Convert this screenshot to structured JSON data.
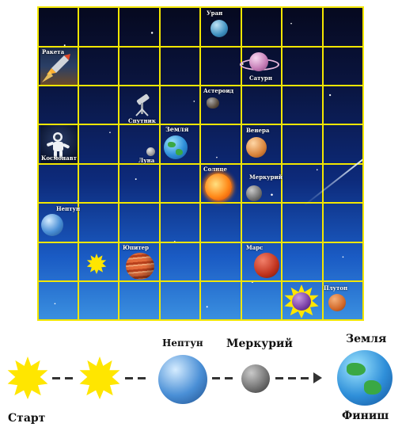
{
  "board": {
    "rows": 8,
    "cols": 8,
    "grid_color": "#f2e600",
    "labels": {
      "uranus": "Уран",
      "rocket": "Ракета",
      "saturn": "Сатурн",
      "asteroid": "Астероид",
      "satellite": "Спутник",
      "earth": "Земля",
      "venus": "Венера",
      "astronaut": "Космонавт",
      "moon": "Луна",
      "sun": "Солнце",
      "mercury": "Меркурий",
      "neptune": "Нептун",
      "jupiter": "Юпитер",
      "mars": "Марс",
      "pluto": "Плутон"
    }
  },
  "path": {
    "start_label": "Старт",
    "finish_label": "Финиш",
    "steps": [
      {
        "icon": "sun-star-icon",
        "label": ""
      },
      {
        "icon": "sun-star-icon",
        "label": ""
      },
      {
        "icon": "neptune-icon",
        "label": "Нептун"
      },
      {
        "icon": "mercury-icon",
        "label": "Меркурий"
      },
      {
        "icon": "earth-icon",
        "label": "Земля"
      }
    ]
  }
}
